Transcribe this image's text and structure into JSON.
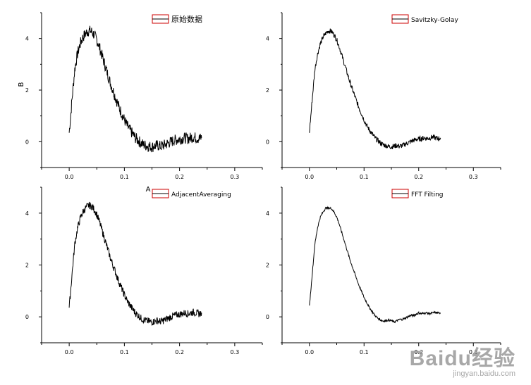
{
  "watermark": {
    "logo": "Baidu经验",
    "url": "jingyan.baidu.com"
  },
  "chart_data": [
    {
      "type": "line",
      "name": "panel-raw",
      "legend": "原始数据",
      "ylabel": "B",
      "xlabel": "",
      "xlim": [
        -0.05,
        0.35
      ],
      "ylim": [
        -1,
        5
      ],
      "xticks": [
        "0.0",
        "0.1",
        "0.2",
        "0.3"
      ],
      "yticks": [
        "0",
        "2",
        "4"
      ],
      "noise": 0.22,
      "x": [
        0.0,
        0.005,
        0.01,
        0.015,
        0.02,
        0.025,
        0.03,
        0.035,
        0.04,
        0.045,
        0.05,
        0.055,
        0.06,
        0.065,
        0.07,
        0.075,
        0.08,
        0.085,
        0.09,
        0.095,
        0.1,
        0.105,
        0.11,
        0.115,
        0.12,
        0.125,
        0.13,
        0.135,
        0.14,
        0.145,
        0.15,
        0.155,
        0.16,
        0.165,
        0.17,
        0.175,
        0.18,
        0.185,
        0.19,
        0.195,
        0.2,
        0.205,
        0.21,
        0.215,
        0.22,
        0.225,
        0.23,
        0.235,
        0.24
      ],
      "y": [
        0.35,
        1.6,
        2.8,
        3.4,
        3.8,
        4.05,
        4.2,
        4.3,
        4.28,
        4.15,
        3.95,
        3.65,
        3.3,
        2.95,
        2.6,
        2.25,
        1.95,
        1.65,
        1.35,
        1.1,
        0.85,
        0.62,
        0.45,
        0.3,
        0.15,
        0.05,
        -0.05,
        -0.12,
        -0.15,
        -0.18,
        -0.2,
        -0.17,
        -0.14,
        -0.18,
        -0.15,
        -0.1,
        -0.05,
        0.0,
        0.05,
        0.08,
        0.1,
        0.12,
        0.15,
        0.12,
        0.15,
        0.18,
        0.15,
        0.12,
        0.15
      ]
    },
    {
      "type": "line",
      "name": "panel-savitzky",
      "legend": "Savitzky-Golay",
      "xlim": [
        -0.05,
        0.35
      ],
      "ylim": [
        -1,
        5
      ],
      "xticks": [
        "0.0",
        "0.1",
        "0.2",
        "0.3"
      ],
      "yticks": [
        "0",
        "2",
        "4"
      ],
      "noise": 0.1,
      "x": [
        0.0,
        0.005,
        0.01,
        0.015,
        0.02,
        0.025,
        0.03,
        0.035,
        0.04,
        0.045,
        0.05,
        0.055,
        0.06,
        0.065,
        0.07,
        0.075,
        0.08,
        0.085,
        0.09,
        0.095,
        0.1,
        0.105,
        0.11,
        0.115,
        0.12,
        0.125,
        0.13,
        0.135,
        0.14,
        0.145,
        0.15,
        0.155,
        0.16,
        0.165,
        0.17,
        0.175,
        0.18,
        0.185,
        0.19,
        0.195,
        0.2,
        0.205,
        0.21,
        0.215,
        0.22,
        0.225,
        0.23,
        0.235,
        0.24
      ],
      "y": [
        0.35,
        1.6,
        2.8,
        3.4,
        3.8,
        4.05,
        4.2,
        4.3,
        4.28,
        4.15,
        3.95,
        3.65,
        3.3,
        2.95,
        2.6,
        2.25,
        1.95,
        1.65,
        1.35,
        1.1,
        0.85,
        0.62,
        0.45,
        0.3,
        0.15,
        0.05,
        -0.05,
        -0.12,
        -0.15,
        -0.18,
        -0.2,
        -0.17,
        -0.14,
        -0.18,
        -0.15,
        -0.1,
        -0.05,
        0.0,
        0.05,
        0.08,
        0.1,
        0.12,
        0.15,
        0.12,
        0.15,
        0.18,
        0.15,
        0.12,
        0.15
      ]
    },
    {
      "type": "line",
      "name": "panel-adjacent",
      "legend": "AdjacentAveraging",
      "xlim": [
        -0.05,
        0.35
      ],
      "ylim": [
        -1,
        5
      ],
      "xticks": [
        "0.0",
        "0.1",
        "0.2",
        "0.3"
      ],
      "yticks": [
        "0",
        "2",
        "4"
      ],
      "noise": 0.14,
      "x": [
        0.0,
        0.005,
        0.01,
        0.015,
        0.02,
        0.025,
        0.03,
        0.035,
        0.04,
        0.045,
        0.05,
        0.055,
        0.06,
        0.065,
        0.07,
        0.075,
        0.08,
        0.085,
        0.09,
        0.095,
        0.1,
        0.105,
        0.11,
        0.115,
        0.12,
        0.125,
        0.13,
        0.135,
        0.14,
        0.145,
        0.15,
        0.155,
        0.16,
        0.165,
        0.17,
        0.175,
        0.18,
        0.185,
        0.19,
        0.195,
        0.2,
        0.205,
        0.21,
        0.215,
        0.22,
        0.225,
        0.23,
        0.235,
        0.24
      ],
      "y": [
        0.35,
        1.6,
        2.8,
        3.4,
        3.8,
        4.05,
        4.2,
        4.3,
        4.28,
        4.15,
        3.95,
        3.65,
        3.3,
        2.95,
        2.6,
        2.25,
        1.95,
        1.65,
        1.35,
        1.1,
        0.85,
        0.62,
        0.45,
        0.3,
        0.15,
        0.05,
        -0.05,
        -0.12,
        -0.15,
        -0.18,
        -0.2,
        -0.17,
        -0.14,
        -0.18,
        -0.15,
        -0.1,
        -0.05,
        0.0,
        0.05,
        0.08,
        0.1,
        0.12,
        0.15,
        0.12,
        0.15,
        0.18,
        0.15,
        0.12,
        0.15
      ],
      "stray_label": "A"
    },
    {
      "type": "line",
      "name": "panel-fft",
      "legend": "FFT Filting",
      "xlim": [
        -0.05,
        0.35
      ],
      "ylim": [
        -1,
        5
      ],
      "xticks": [
        "0.0",
        "0.1",
        "0.2",
        "0.3"
      ],
      "yticks": [
        "0",
        "2",
        "4"
      ],
      "noise": 0.04,
      "x": [
        0.0,
        0.005,
        0.01,
        0.015,
        0.02,
        0.025,
        0.03,
        0.035,
        0.04,
        0.045,
        0.05,
        0.055,
        0.06,
        0.065,
        0.07,
        0.075,
        0.08,
        0.085,
        0.09,
        0.095,
        0.1,
        0.105,
        0.11,
        0.115,
        0.12,
        0.125,
        0.13,
        0.135,
        0.14,
        0.145,
        0.15,
        0.155,
        0.16,
        0.165,
        0.17,
        0.175,
        0.18,
        0.185,
        0.19,
        0.195,
        0.2,
        0.205,
        0.21,
        0.215,
        0.22,
        0.225,
        0.23,
        0.235,
        0.24
      ],
      "y": [
        0.4,
        1.6,
        2.8,
        3.45,
        3.85,
        4.05,
        4.2,
        4.2,
        4.18,
        4.05,
        3.85,
        3.55,
        3.2,
        2.85,
        2.5,
        2.15,
        1.85,
        1.55,
        1.25,
        1.0,
        0.75,
        0.55,
        0.35,
        0.2,
        0.05,
        -0.05,
        -0.12,
        -0.16,
        -0.15,
        -0.12,
        -0.15,
        -0.2,
        -0.15,
        -0.1,
        -0.1,
        -0.05,
        0.0,
        0.05,
        0.05,
        0.1,
        0.15,
        0.12,
        0.15,
        0.15,
        0.12,
        0.15,
        0.17,
        0.15,
        0.15
      ]
    }
  ]
}
